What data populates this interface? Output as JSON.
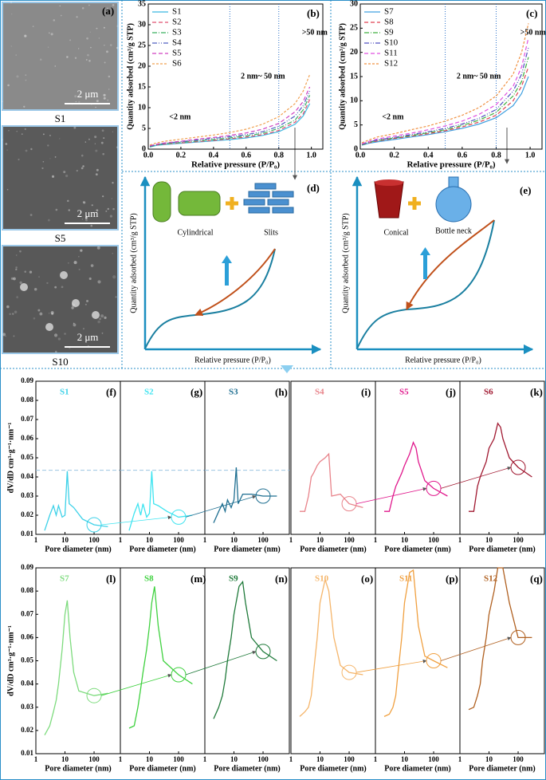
{
  "images": [
    {
      "label": "(a)",
      "scale": "2 μm",
      "sample": "S1"
    },
    {
      "scale": "2 μm",
      "sample": "S5"
    },
    {
      "scale": "2 μm",
      "sample": "S10"
    }
  ],
  "diagrams": [
    {
      "label": "(d)",
      "shapes": [
        "Cylindrical",
        "Slits"
      ],
      "ylabel": "Quantity adsorbed (cm³/g STP)",
      "xlabel": "Relative pressure (P/P₀)"
    },
    {
      "label": "(e)",
      "shapes": [
        "Conical",
        "Bottle neck"
      ],
      "ylabel": "Quantity adsorbed (cm³/g STP)",
      "xlabel": "Relative pressure (P/P₀)"
    }
  ],
  "chart_data": [
    {
      "type": "line",
      "panel": "(b)",
      "xlabel": "Relative pressure (P/P₀)",
      "ylabel": "Quantity adsorbed (cm³/g STP)",
      "annotations": [
        "<2 nm",
        "2 nm~ 50 nm",
        ">50 nm"
      ],
      "vlines": [
        0.5,
        0.8
      ],
      "xlim": [
        0,
        1.07
      ],
      "xticks": [
        {
          "value": 0,
          "label": "0.0"
        },
        0.2,
        0.4,
        0.6,
        0.8,
        {
          "value": 1,
          "label": "1.0"
        }
      ],
      "ylim": [
        0,
        35
      ],
      "yticks": [
        0,
        5,
        10,
        15,
        20,
        25,
        30,
        35
      ],
      "x": [
        0.01,
        0.05,
        0.1,
        0.2,
        0.3,
        0.4,
        0.5,
        0.6,
        0.7,
        0.8,
        0.9,
        0.95,
        0.99
      ],
      "series": [
        {
          "name": "S1",
          "color": "#3bb8e0",
          "dash": "solid",
          "values": [
            0.5,
            0.9,
            1.1,
            1.4,
            1.7,
            2,
            2.3,
            2.7,
            3.3,
            4.2,
            6,
            8,
            11
          ]
        },
        {
          "name": "S2",
          "color": "#e05070",
          "dash": "dash",
          "values": [
            0.6,
            1,
            1.2,
            1.5,
            1.8,
            2.1,
            2.5,
            2.9,
            3.5,
            4.5,
            6.5,
            8.5,
            12
          ]
        },
        {
          "name": "S3",
          "color": "#3cb060",
          "dash": "dashdot",
          "values": [
            0.6,
            1,
            1.3,
            1.6,
            2,
            2.3,
            2.7,
            3.2,
            3.8,
            5,
            7,
            9.5,
            13
          ]
        },
        {
          "name": "S4",
          "color": "#5060c0",
          "dash": "dashdotdot",
          "values": [
            0.7,
            1.1,
            1.4,
            1.8,
            2.2,
            2.6,
            3,
            3.5,
            4.2,
            5.5,
            8,
            10.5,
            14
          ]
        },
        {
          "name": "S5",
          "color": "#d040c0",
          "dash": "dash",
          "values": [
            0.8,
            1.2,
            1.5,
            1.9,
            2.4,
            2.8,
            3.3,
            3.9,
            4.8,
            6.2,
            9,
            11.5,
            15
          ]
        },
        {
          "name": "S6",
          "color": "#f0a050",
          "dash": "shortdash",
          "values": [
            1,
            1.5,
            1.9,
            2.4,
            2.9,
            3.4,
            4,
            4.8,
            6,
            7.8,
            11,
            14,
            18
          ]
        }
      ]
    },
    {
      "type": "line",
      "panel": "(c)",
      "xlabel": "Relative pressure (P/P₀)",
      "ylabel": "Quantity adsorbed (cm³/g STP)",
      "annotations": [
        "<2 nm",
        "2 nm~ 50 nm",
        ">50 nm"
      ],
      "vlines": [
        0.5,
        0.8
      ],
      "xlim": [
        0,
        1.07
      ],
      "xticks": [
        {
          "value": 0,
          "label": "0.0"
        },
        0.2,
        0.4,
        0.6,
        0.8,
        {
          "value": 1,
          "label": "1.0"
        }
      ],
      "ylim": [
        0,
        30
      ],
      "yticks": [
        0,
        5,
        10,
        15,
        20,
        25,
        30
      ],
      "x": [
        0.01,
        0.05,
        0.1,
        0.2,
        0.3,
        0.4,
        0.5,
        0.6,
        0.7,
        0.8,
        0.9,
        0.95,
        0.99
      ],
      "series": [
        {
          "name": "S7",
          "color": "#40a0e0",
          "dash": "solid",
          "values": [
            0.8,
            1.2,
            1.5,
            2,
            2.5,
            3,
            3.6,
            4.3,
            5.2,
            6.5,
            9,
            11.5,
            15
          ]
        },
        {
          "name": "S8",
          "color": "#e04050",
          "dash": "dash",
          "values": [
            0.9,
            1.3,
            1.7,
            2.2,
            2.7,
            3.2,
            3.8,
            4.6,
            5.6,
            7,
            10,
            13,
            17
          ]
        },
        {
          "name": "S9",
          "color": "#40b040",
          "dash": "dashdot",
          "values": [
            0.9,
            1.4,
            1.8,
            2.3,
            2.8,
            3.4,
            4,
            4.9,
            6,
            7.6,
            11,
            14,
            19
          ]
        },
        {
          "name": "S10",
          "color": "#5050c0",
          "dash": "dashdotdot",
          "values": [
            1,
            1.5,
            1.9,
            2.4,
            3,
            3.6,
            4.3,
            5.2,
            6.4,
            8.2,
            12,
            15.5,
            21
          ]
        },
        {
          "name": "S11",
          "color": "#e050e0",
          "dash": "dash",
          "values": [
            1.1,
            1.6,
            2.1,
            2.7,
            3.3,
            4,
            4.8,
            5.8,
            7.2,
            9.2,
            13,
            17,
            23
          ]
        },
        {
          "name": "S12",
          "color": "#f09040",
          "dash": "shortdash",
          "values": [
            1.3,
            1.9,
            2.5,
            3.2,
            4,
            4.8,
            5.8,
            7,
            8.6,
            11,
            15.5,
            20,
            26
          ]
        }
      ]
    },
    {
      "type": "line",
      "panel": "(f)",
      "log_x": true,
      "xlabel": "Pore diameter (nm)",
      "ylabel": "dV/dD cm³·g⁻¹·nm⁻¹",
      "reference_line": 0.0435,
      "xlim": [
        1,
        800
      ],
      "xticks": [
        1,
        10,
        100
      ],
      "ylim": [
        0.01,
        0.09
      ],
      "yticks": [
        0.01,
        0.02,
        0.03,
        0.04,
        0.05,
        0.06,
        0.07,
        0.08,
        0.09
      ],
      "x": [
        2,
        3,
        4,
        5,
        6,
        8,
        10,
        12,
        14,
        20,
        40,
        100,
        300
      ],
      "series": [
        {
          "name": "S1",
          "color": "#3dd1e8",
          "values": [
            0.012,
            0.02,
            0.025,
            0.02,
            0.025,
            0.019,
            0.02,
            0.043,
            0.026,
            0.024,
            0.018,
            0.015,
            0.014
          ]
        }
      ]
    },
    {
      "type": "line",
      "panel": "(g)",
      "log_x": true,
      "xlabel": "Pore diameter (nm)",
      "reference_line": 0.0435,
      "xlim": [
        1,
        800
      ],
      "xticks": [
        1,
        10,
        100
      ],
      "ylim": [
        0.01,
        0.09
      ],
      "x": [
        2,
        3,
        4,
        5,
        6,
        8,
        10,
        12,
        14,
        20,
        40,
        100,
        300
      ],
      "series": [
        {
          "name": "S2",
          "color": "#3ee4f0",
          "values": [
            0.012,
            0.021,
            0.026,
            0.02,
            0.026,
            0.019,
            0.021,
            0.043,
            0.026,
            0.025,
            0.022,
            0.019,
            0.02
          ]
        }
      ]
    },
    {
      "type": "line",
      "panel": "(h)",
      "log_x": true,
      "xlabel": "Pore diameter (nm)",
      "reference_line": 0.0435,
      "xlim": [
        1,
        800
      ],
      "xticks": [
        1,
        10,
        100
      ],
      "ylim": [
        0.01,
        0.09
      ],
      "x": [
        2,
        3,
        4,
        5,
        6,
        8,
        10,
        12,
        14,
        20,
        40,
        100,
        300
      ],
      "series": [
        {
          "name": "S3",
          "color": "#1f6f91",
          "values": [
            0.016,
            0.022,
            0.026,
            0.022,
            0.028,
            0.024,
            0.028,
            0.045,
            0.026,
            0.031,
            0.031,
            0.03,
            0.03
          ]
        }
      ]
    },
    {
      "type": "line",
      "panel": "(i)",
      "log_x": true,
      "xlabel": "Pore diameter (nm)",
      "xlim": [
        1,
        800
      ],
      "xticks": [
        1,
        10,
        100
      ],
      "ylim": [
        0.01,
        0.09
      ],
      "x": [
        2,
        3,
        4,
        5,
        6,
        8,
        10,
        15,
        20,
        25,
        50,
        100,
        300
      ],
      "series": [
        {
          "name": "S4",
          "color": "#e8838a",
          "values": [
            0.022,
            0.022,
            0.03,
            0.04,
            0.042,
            0.046,
            0.048,
            0.05,
            0.052,
            0.03,
            0.031,
            0.026,
            0.024
          ]
        }
      ]
    },
    {
      "type": "line",
      "panel": "(j)",
      "log_x": true,
      "xlabel": "Pore diameter (nm)",
      "xlim": [
        1,
        800
      ],
      "xticks": [
        1,
        10,
        100
      ],
      "ylim": [
        0.01,
        0.09
      ],
      "x": [
        2,
        3,
        4,
        5,
        8,
        10,
        15,
        20,
        25,
        30,
        50,
        100,
        300
      ],
      "series": [
        {
          "name": "S5",
          "color": "#e0188c",
          "values": [
            0.022,
            0.022,
            0.03,
            0.035,
            0.042,
            0.046,
            0.052,
            0.058,
            0.055,
            0.048,
            0.038,
            0.034,
            0.03
          ]
        }
      ]
    },
    {
      "type": "line",
      "panel": "(k)",
      "log_x": true,
      "xlabel": "Pore diameter (nm)",
      "xlim": [
        1,
        800
      ],
      "xticks": [
        1,
        10,
        100
      ],
      "ylim": [
        0.01,
        0.09
      ],
      "x": [
        2,
        3,
        4,
        5,
        8,
        10,
        15,
        20,
        25,
        30,
        50,
        100,
        300
      ],
      "series": [
        {
          "name": "S6",
          "color": "#a01830",
          "values": [
            0.022,
            0.022,
            0.035,
            0.04,
            0.048,
            0.055,
            0.06,
            0.068,
            0.066,
            0.06,
            0.05,
            0.045,
            0.04
          ]
        }
      ]
    },
    {
      "type": "line",
      "panel": "(l)",
      "log_x": true,
      "xlabel": "Pore diameter (nm)",
      "ylabel": "dV/dD cm³·g⁻¹·nm⁻¹",
      "xlim": [
        1,
        800
      ],
      "xticks": [
        1,
        10,
        100
      ],
      "ylim": [
        0.01,
        0.09
      ],
      "yticks": [
        0.01,
        0.02,
        0.03,
        0.04,
        0.05,
        0.06,
        0.07,
        0.08,
        0.09
      ],
      "x": [
        2,
        3,
        4,
        5,
        6,
        8,
        10,
        12,
        15,
        20,
        30,
        100,
        300
      ],
      "series": [
        {
          "name": "S7",
          "color": "#7ddb7d",
          "values": [
            0.018,
            0.022,
            0.028,
            0.033,
            0.04,
            0.055,
            0.07,
            0.076,
            0.06,
            0.045,
            0.037,
            0.035,
            0.036
          ]
        }
      ]
    },
    {
      "type": "line",
      "panel": "(m)",
      "log_x": true,
      "xlabel": "Pore diameter (nm)",
      "xlim": [
        1,
        800
      ],
      "xticks": [
        1,
        10,
        100
      ],
      "ylim": [
        0.01,
        0.09
      ],
      "x": [
        2,
        3,
        4,
        5,
        6,
        8,
        10,
        12,
        15,
        20,
        30,
        100,
        300
      ],
      "series": [
        {
          "name": "S8",
          "color": "#3fd13f",
          "values": [
            0.021,
            0.022,
            0.03,
            0.038,
            0.045,
            0.055,
            0.065,
            0.075,
            0.082,
            0.065,
            0.05,
            0.044,
            0.04
          ]
        }
      ]
    },
    {
      "type": "line",
      "panel": "(n)",
      "log_x": true,
      "xlabel": "Pore diameter (nm)",
      "xlim": [
        1,
        800
      ],
      "xticks": [
        1,
        10,
        100
      ],
      "ylim": [
        0.01,
        0.09
      ],
      "x": [
        2,
        3,
        4,
        5,
        6,
        8,
        10,
        15,
        20,
        25,
        40,
        100,
        300
      ],
      "series": [
        {
          "name": "S9",
          "color": "#1f7a3a",
          "values": [
            0.025,
            0.03,
            0.035,
            0.042,
            0.05,
            0.06,
            0.07,
            0.082,
            0.084,
            0.075,
            0.06,
            0.054,
            0.05
          ]
        }
      ]
    },
    {
      "type": "line",
      "panel": "(o)",
      "log_x": true,
      "xlabel": "Pore diameter (nm)",
      "xlim": [
        1,
        800
      ],
      "xticks": [
        1,
        10,
        100
      ],
      "ylim": [
        0.01,
        0.09
      ],
      "x": [
        2,
        3,
        4,
        5,
        6,
        8,
        10,
        15,
        20,
        30,
        50,
        100,
        300
      ],
      "series": [
        {
          "name": "S10",
          "color": "#f5b56a",
          "values": [
            0.026,
            0.028,
            0.03,
            0.035,
            0.045,
            0.06,
            0.075,
            0.085,
            0.08,
            0.06,
            0.048,
            0.045,
            0.044
          ]
        }
      ]
    },
    {
      "type": "line",
      "panel": "(p)",
      "log_x": true,
      "xlabel": "Pore diameter (nm)",
      "xlim": [
        1,
        800
      ],
      "xticks": [
        1,
        10,
        100
      ],
      "ylim": [
        0.01,
        0.09
      ],
      "x": [
        2,
        3,
        4,
        5,
        6,
        8,
        10,
        15,
        20,
        30,
        50,
        100,
        300
      ],
      "series": [
        {
          "name": "S11",
          "color": "#f0a040",
          "values": [
            0.026,
            0.027,
            0.03,
            0.035,
            0.045,
            0.06,
            0.075,
            0.088,
            0.089,
            0.065,
            0.052,
            0.05,
            0.047
          ]
        }
      ]
    },
    {
      "type": "line",
      "panel": "(q)",
      "log_x": true,
      "xlabel": "Pore diameter (nm)",
      "xlim": [
        1,
        800
      ],
      "xticks": [
        1,
        10,
        100
      ],
      "ylim": [
        0.01,
        0.09
      ],
      "x": [
        2,
        3,
        4,
        5,
        6,
        8,
        10,
        15,
        20,
        30,
        50,
        100,
        300
      ],
      "series": [
        {
          "name": "S12",
          "color": "#b06020",
          "values": [
            0.029,
            0.03,
            0.035,
            0.04,
            0.05,
            0.06,
            0.07,
            0.08,
            0.09,
            0.09,
            0.075,
            0.06,
            0.06
          ]
        }
      ]
    }
  ]
}
